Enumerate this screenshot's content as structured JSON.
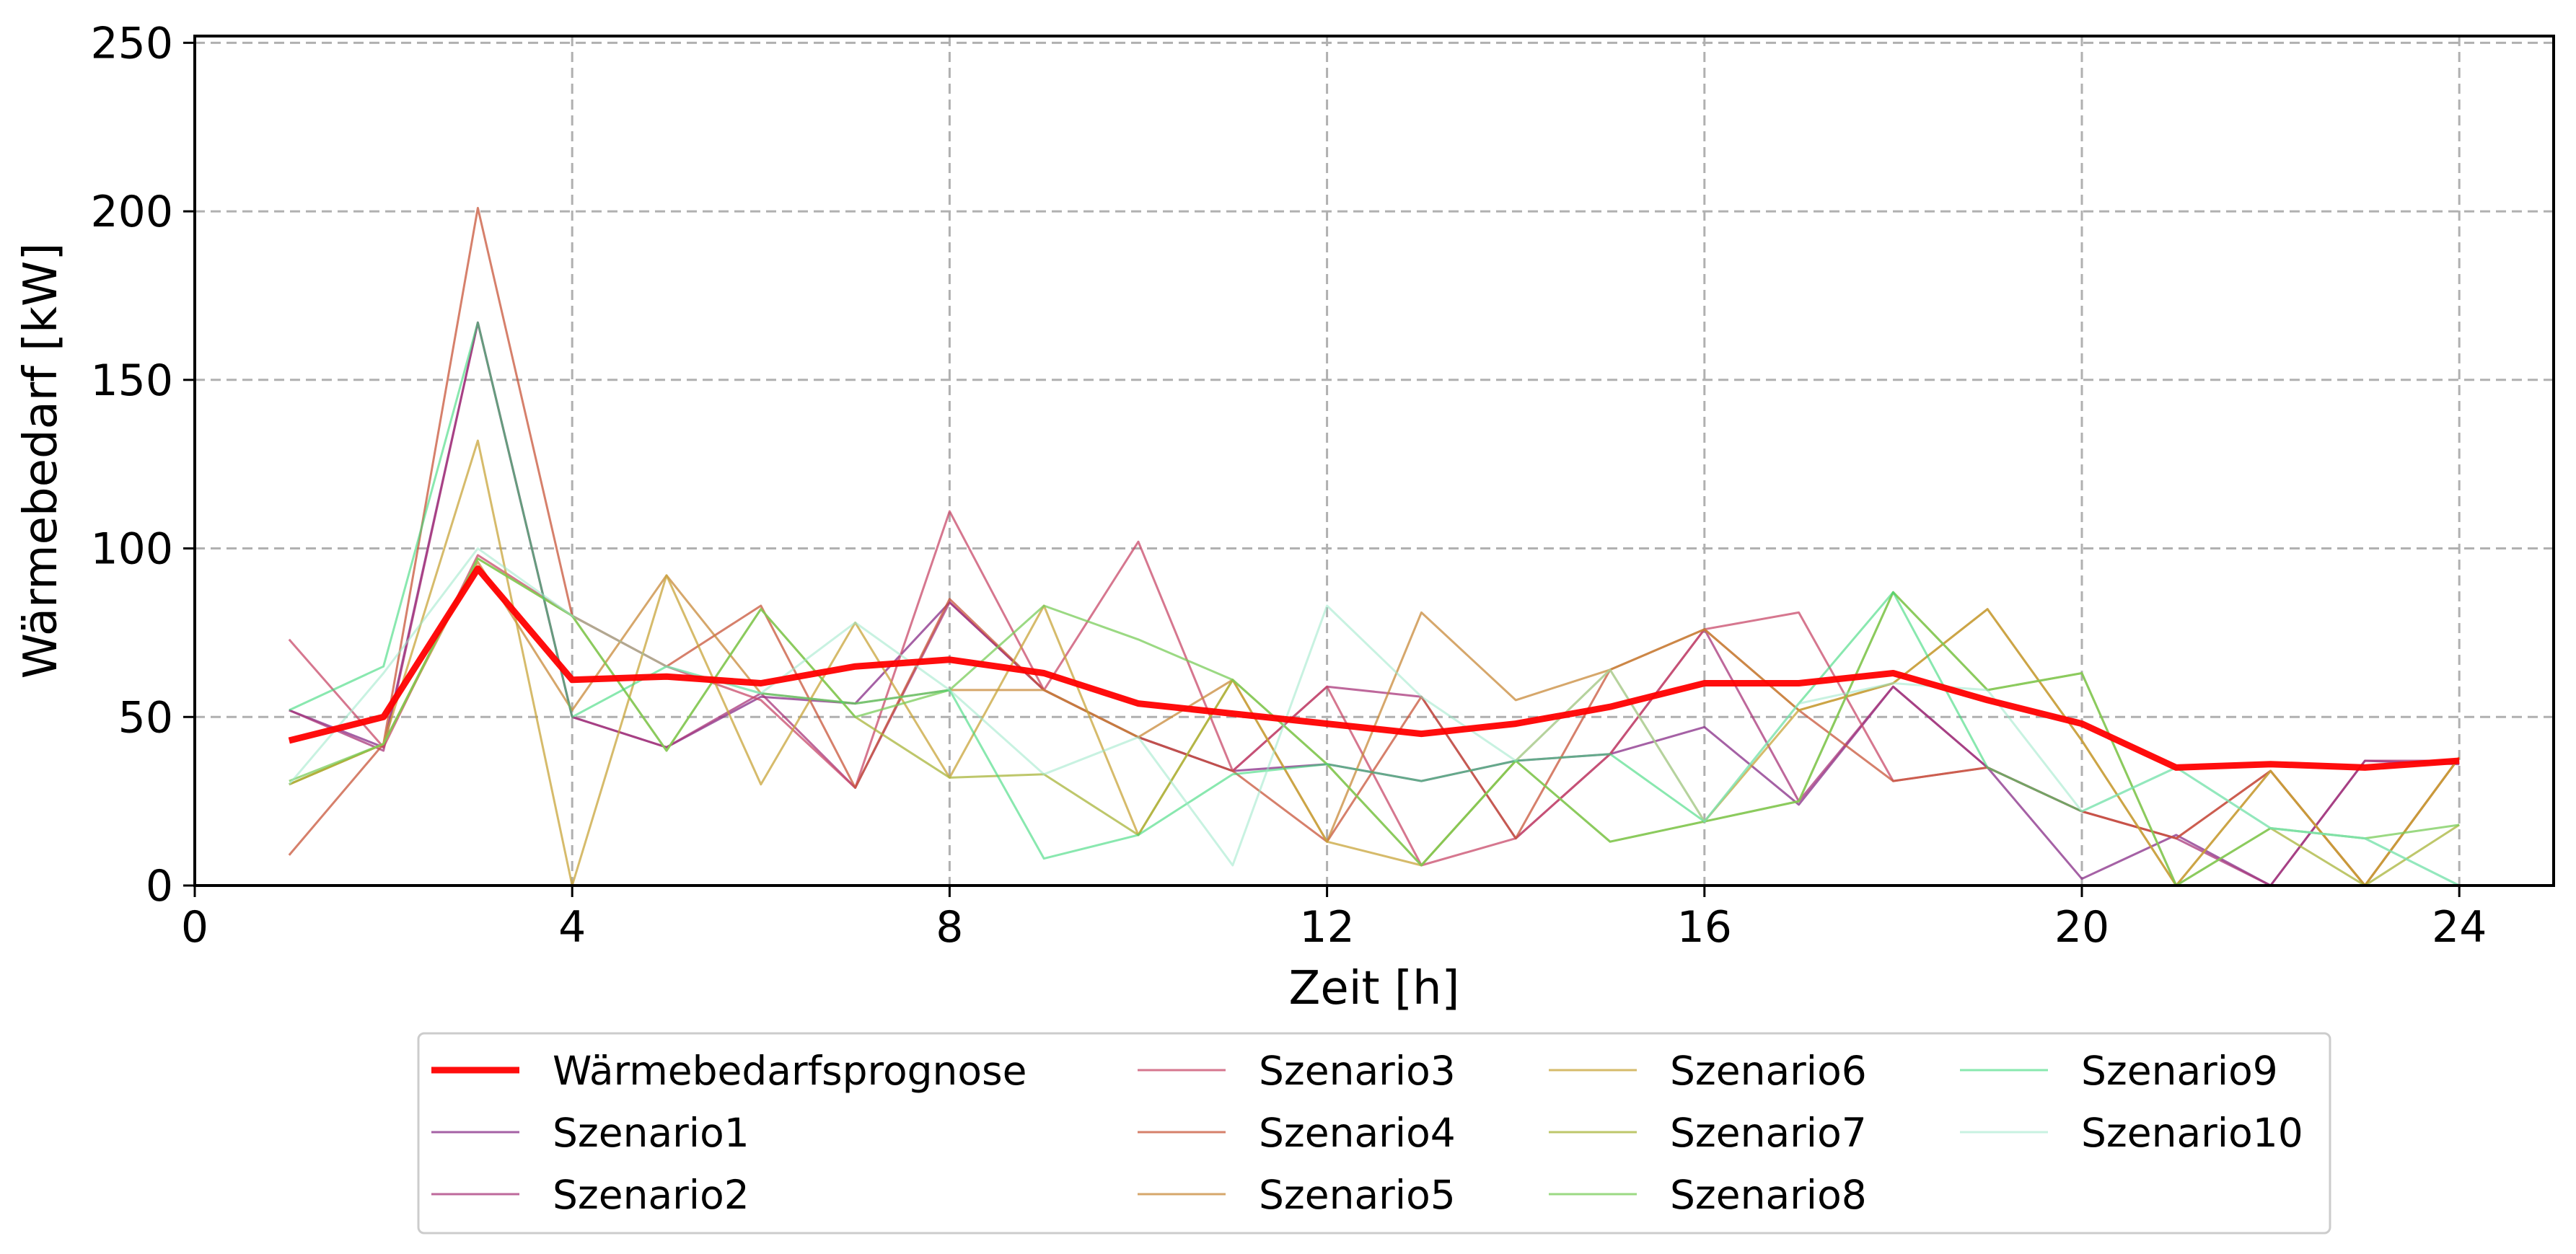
{
  "chart_data": {
    "type": "line",
    "xlabel": "Zeit [h]",
    "ylabel": "Wärmebedarf [kW]",
    "xlim": [
      0,
      25
    ],
    "ylim": [
      0,
      252
    ],
    "xticks": [
      0,
      4,
      8,
      12,
      16,
      20,
      24
    ],
    "yticks": [
      0,
      50,
      100,
      150,
      200,
      250
    ],
    "grid": true,
    "legend_position": "below",
    "legend_columns": 4,
    "x": [
      1,
      2,
      3,
      4,
      5,
      6,
      7,
      8,
      9,
      10,
      11,
      12,
      13,
      14,
      15,
      16,
      17,
      18,
      19,
      20,
      21,
      22,
      23,
      24
    ],
    "series": [
      {
        "name": "Wärmebedarfsprognose",
        "color": "#ff0000",
        "width": 9,
        "opacity": 0.95,
        "values": [
          43,
          50,
          94,
          61,
          62,
          60,
          65,
          67,
          63,
          54,
          51,
          48,
          45,
          48,
          53,
          60,
          60,
          63,
          55,
          48,
          35,
          36,
          35,
          37
        ]
      },
      {
        "name": "Szenario1",
        "color": "#8e3a8e",
        "width": 3,
        "opacity": 0.8,
        "values": [
          52,
          41,
          167,
          50,
          41,
          56,
          54,
          84,
          58,
          44,
          34,
          36,
          31,
          37,
          39,
          47,
          24,
          59,
          35,
          2,
          15,
          0,
          37,
          36
        ]
      },
      {
        "name": "Szenario2",
        "color": "#a8367a",
        "width": 3,
        "opacity": 0.75,
        "values": [
          52,
          40,
          167,
          50,
          41,
          57,
          29,
          84,
          58,
          44,
          34,
          59,
          56,
          14,
          39,
          76,
          25,
          59,
          35,
          22,
          14,
          0,
          37,
          37
        ]
      },
      {
        "name": "Szenario3",
        "color": "#c84a6a",
        "width": 3,
        "opacity": 0.75,
        "values": [
          73,
          41,
          98,
          80,
          65,
          55,
          29,
          111,
          58,
          102,
          34,
          59,
          6,
          14,
          39,
          76,
          81,
          31,
          35,
          22,
          14,
          34,
          0,
          38
        ]
      },
      {
        "name": "Szenario4",
        "color": "#c8553a",
        "width": 3,
        "opacity": 0.75,
        "values": [
          9,
          42,
          201,
          80,
          65,
          83,
          29,
          85,
          58,
          44,
          34,
          13,
          56,
          14,
          64,
          76,
          52,
          31,
          35,
          22,
          14,
          34,
          0,
          38
        ]
      },
      {
        "name": "Szenario5",
        "color": "#c88a3a",
        "width": 3,
        "opacity": 0.75,
        "values": [
          30,
          42,
          96,
          52,
          92,
          57,
          54,
          58,
          58,
          44,
          61,
          13,
          81,
          55,
          64,
          76,
          52,
          60,
          82,
          43,
          0,
          34,
          0,
          38
        ]
      },
      {
        "name": "Szenario6",
        "color": "#c8a43a",
        "width": 3,
        "opacity": 0.75,
        "values": [
          30,
          42,
          132,
          0,
          92,
          30,
          78,
          32,
          83,
          15,
          61,
          13,
          6,
          37,
          64,
          19,
          52,
          60,
          82,
          43,
          0,
          34,
          0,
          38
        ]
      },
      {
        "name": "Szenario7",
        "color": "#a8b43a",
        "width": 3,
        "opacity": 0.75,
        "values": [
          30,
          42,
          97,
          80,
          40,
          82,
          50,
          32,
          33,
          15,
          61,
          36,
          6,
          37,
          13,
          19,
          25,
          87,
          58,
          63,
          0,
          17,
          0,
          18
        ]
      },
      {
        "name": "Szenario8",
        "color": "#7acc5a",
        "width": 3,
        "opacity": 0.75,
        "values": [
          31,
          42,
          97,
          80,
          40,
          82,
          50,
          58,
          83,
          73,
          61,
          36,
          6,
          37,
          13,
          19,
          25,
          87,
          58,
          63,
          0,
          17,
          14,
          18
        ]
      },
      {
        "name": "Szenario9",
        "color": "#3ad87a",
        "width": 3,
        "opacity": 0.6,
        "values": [
          52,
          65,
          167,
          50,
          65,
          57,
          54,
          58,
          8,
          15,
          33,
          36,
          31,
          37,
          39,
          19,
          54,
          87,
          35,
          22,
          35,
          17,
          14,
          0
        ]
      },
      {
        "name": "Szenario10",
        "color": "#9ae8c8",
        "width": 3,
        "opacity": 0.55,
        "values": [
          30,
          63,
          100,
          80,
          65,
          57,
          78,
          58,
          33,
          44,
          6,
          83,
          56,
          37,
          64,
          19,
          54,
          60,
          58,
          22,
          35,
          17,
          14,
          0
        ]
      }
    ]
  }
}
